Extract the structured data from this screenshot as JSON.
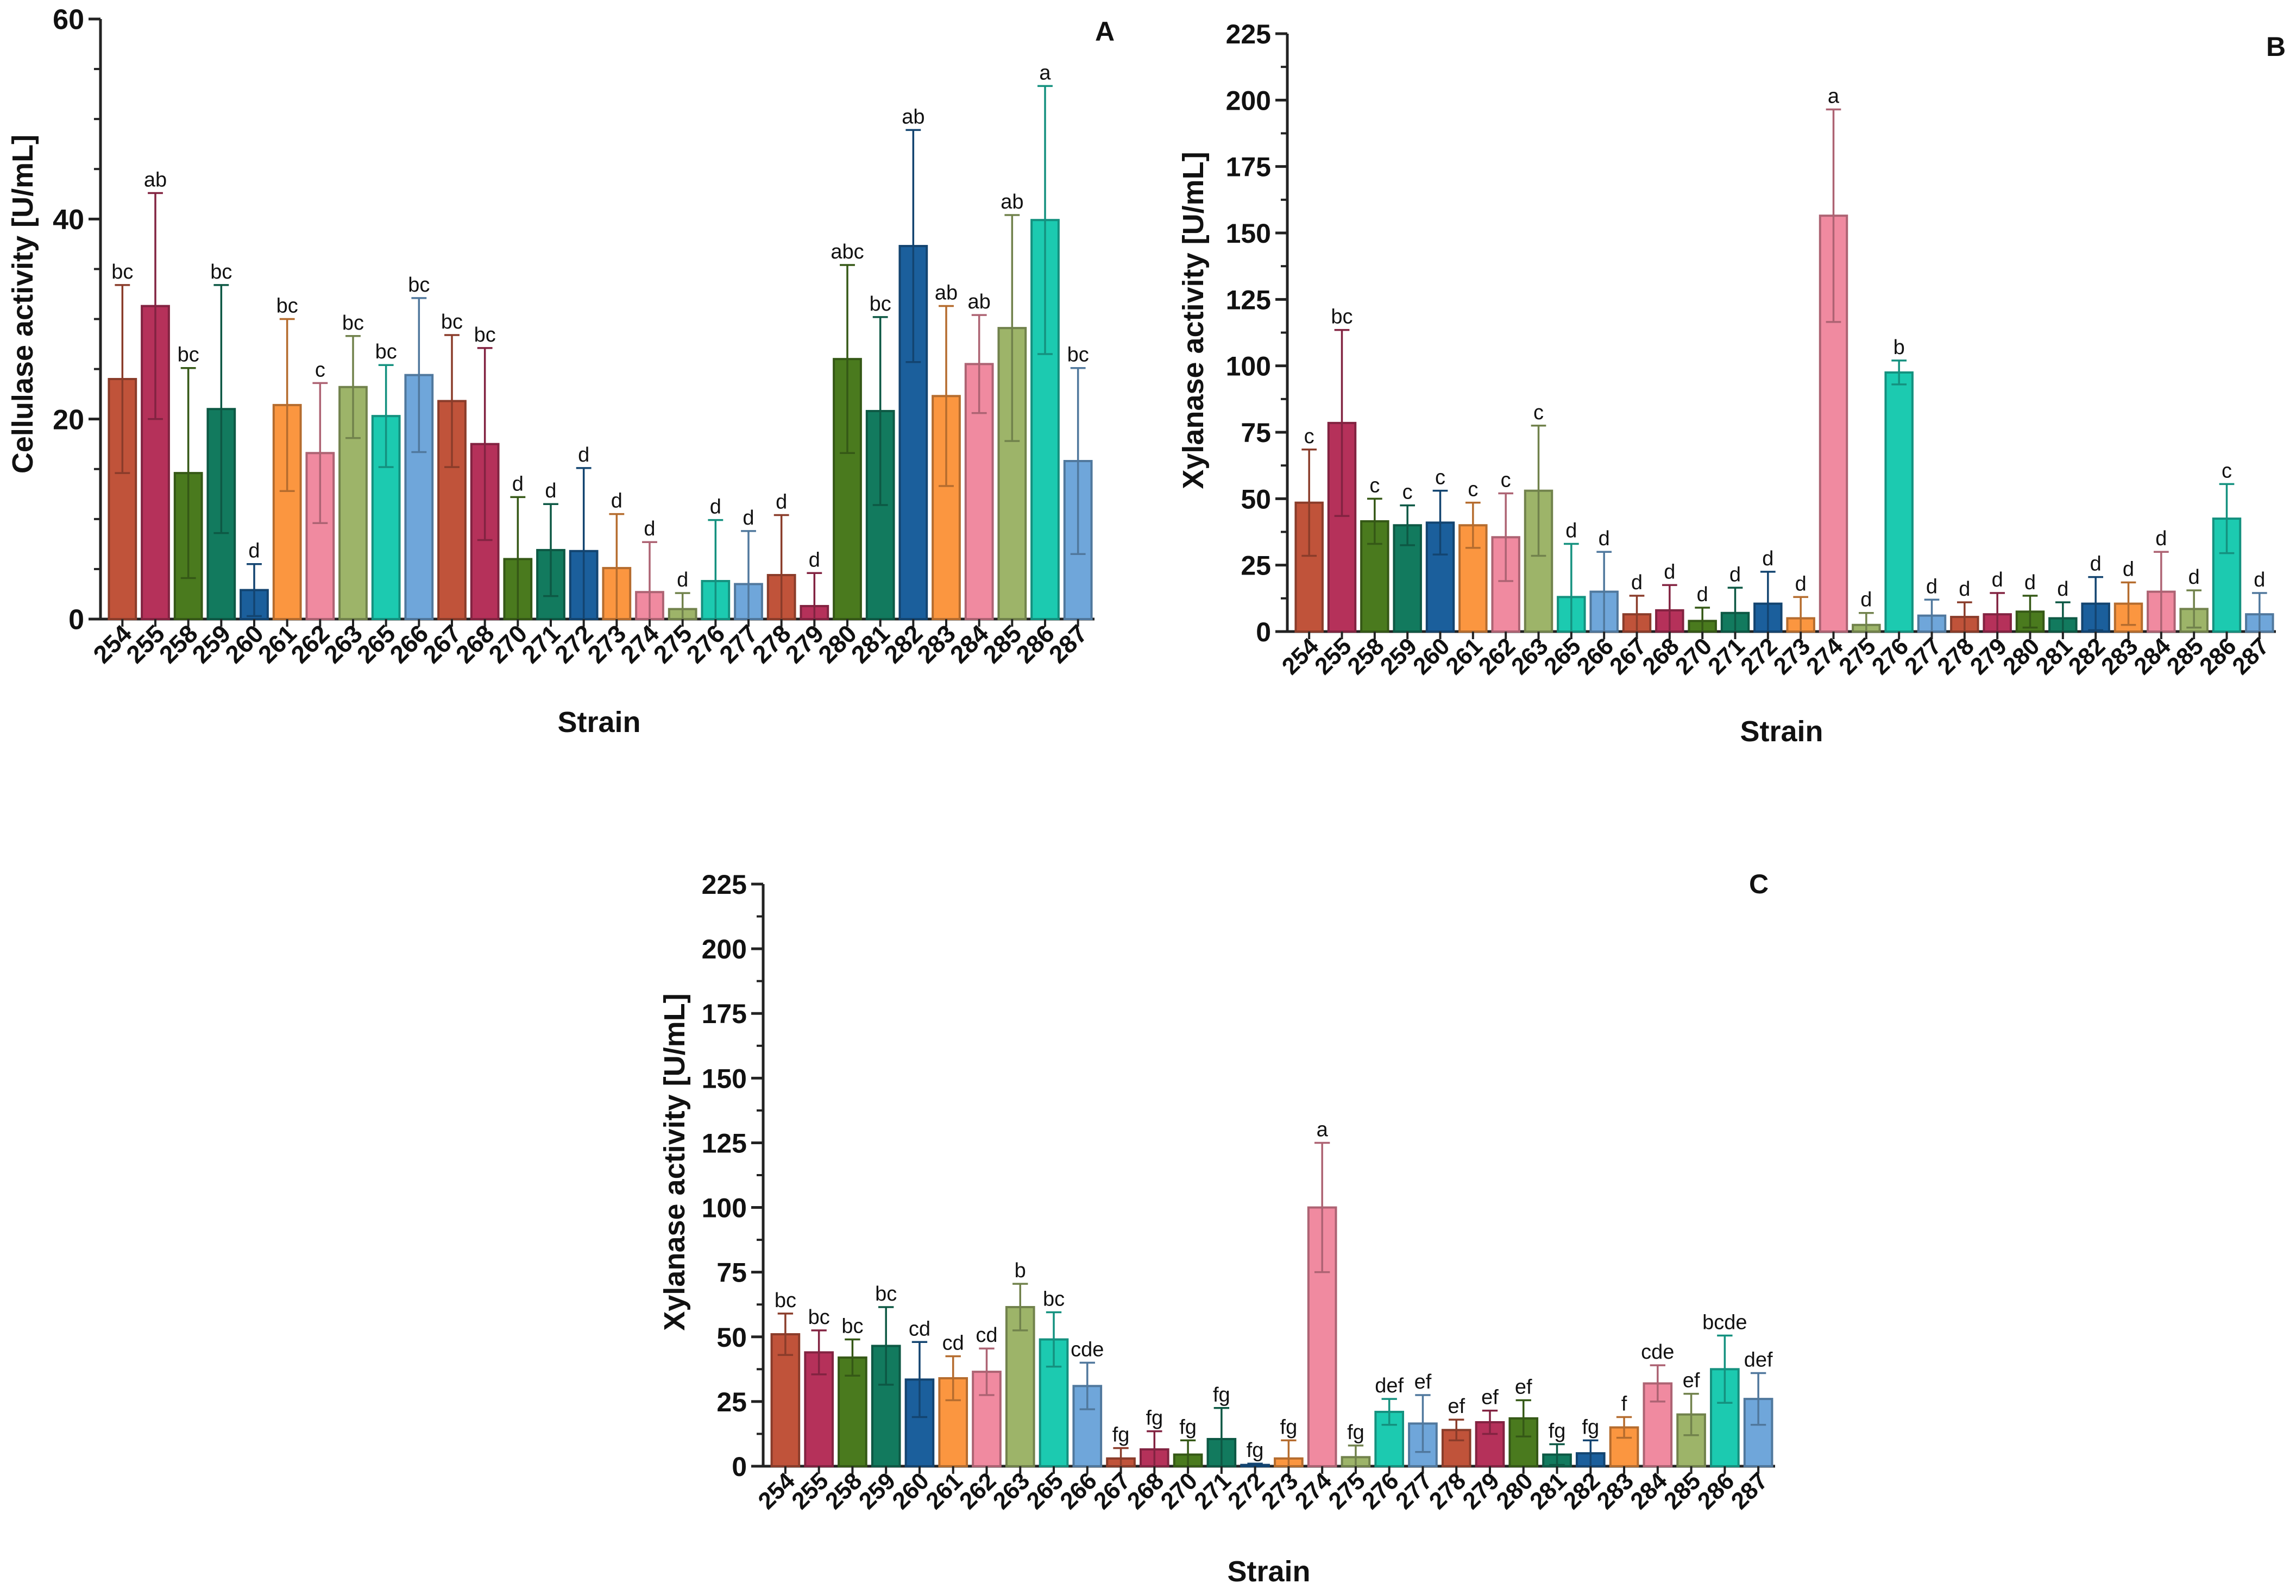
{
  "figure": {
    "x_tick_labels": [
      "254",
      "255",
      "258",
      "259",
      "260",
      "261",
      "262",
      "263",
      "265",
      "266",
      "267",
      "268",
      "270",
      "271",
      "272",
      "273",
      "274",
      "275",
      "276",
      "277",
      "278",
      "279",
      "280",
      "281",
      "282",
      "283",
      "284",
      "285",
      "286",
      "287"
    ],
    "bar_colors": [
      "#c0533a",
      "#b5315a",
      "#4a7a1e",
      "#127a5e",
      "#1b5f9c",
      "#fb9640",
      "#f08aa0",
      "#9db469",
      "#1ccab0",
      "#6fa6da",
      "#c0533a",
      "#b5315a",
      "#4a7a1e",
      "#127a5e",
      "#1b5f9c",
      "#fb9640",
      "#f08aa0",
      "#9db469",
      "#1ccab0",
      "#6fa6da",
      "#c0533a",
      "#b5315a",
      "#4a7a1e",
      "#127a5e",
      "#1b5f9c",
      "#fb9640",
      "#f08aa0",
      "#9db469",
      "#1ccab0",
      "#6fa6da"
    ]
  },
  "chart_data": [
    {
      "type": "bar",
      "panel_label": "A",
      "xlabel": "Strain",
      "ylabel": "Cellulase activity [U/mL]",
      "ylim": [
        0,
        60
      ],
      "yticks": [
        0,
        20,
        40,
        60
      ],
      "categories": [
        "254",
        "255",
        "258",
        "259",
        "260",
        "261",
        "262",
        "263",
        "265",
        "266",
        "267",
        "268",
        "270",
        "271",
        "272",
        "273",
        "274",
        "275",
        "276",
        "277",
        "278",
        "279",
        "280",
        "281",
        "282",
        "283",
        "284",
        "285",
        "286",
        "287"
      ],
      "values": [
        24,
        31.3,
        14.6,
        21,
        2.9,
        21.4,
        16.6,
        23.2,
        20.3,
        24.4,
        21.8,
        17.5,
        6,
        6.9,
        6.8,
        5.1,
        2.7,
        1,
        3.8,
        3.5,
        4.4,
        1.3,
        26,
        20.8,
        37.3,
        22.3,
        25.5,
        29.1,
        39.9,
        15.8
      ],
      "errors": [
        9.4,
        11.3,
        10.5,
        12.4,
        2.6,
        8.6,
        7,
        5.1,
        5.1,
        7.7,
        6.6,
        9.6,
        6.2,
        4.6,
        8.3,
        5.4,
        5,
        1.6,
        6.1,
        5.3,
        6,
        3.3,
        9.4,
        9.4,
        11.6,
        9,
        4.9,
        11.3,
        13.4,
        9.3
      ],
      "significance_labels": [
        "bc",
        "ab",
        "bc",
        "bc",
        "d",
        "bc",
        "c",
        "bc",
        "bc",
        "bc",
        "bc",
        "bc",
        "d",
        "d",
        "d",
        "d",
        "d",
        "d",
        "d",
        "d",
        "d",
        "d",
        "abc",
        "bc",
        "ab",
        "ab",
        "ab",
        "ab",
        "a",
        "bc"
      ]
    },
    {
      "type": "bar",
      "panel_label": "B",
      "xlabel": "Strain",
      "ylabel": "Xylanase activity [U/mL]",
      "ylim": [
        0,
        225
      ],
      "yticks": [
        0,
        25,
        50,
        75,
        100,
        125,
        150,
        175,
        200,
        225
      ],
      "categories": [
        "254",
        "255",
        "258",
        "259",
        "260",
        "261",
        "262",
        "263",
        "265",
        "266",
        "267",
        "268",
        "270",
        "271",
        "272",
        "273",
        "274",
        "275",
        "276",
        "277",
        "278",
        "279",
        "280",
        "281",
        "282",
        "283",
        "284",
        "285",
        "286",
        "287"
      ],
      "values": [
        48.5,
        78.5,
        41.5,
        40,
        41,
        40,
        35.5,
        53,
        13,
        15,
        6.5,
        8,
        4,
        7,
        10.5,
        5,
        156.5,
        2.5,
        97.5,
        6,
        5.5,
        6.5,
        7.5,
        5,
        10.5,
        10.5,
        15,
        8.5,
        42.5,
        6.5
      ],
      "errors": [
        20,
        35,
        8.5,
        7.5,
        12,
        8.5,
        16.5,
        24.5,
        20,
        15,
        7,
        9.5,
        5,
        9.5,
        12,
        8,
        40,
        4.5,
        4.5,
        6,
        5.5,
        8,
        6,
        6,
        10,
        8,
        15,
        7,
        13,
        8
      ],
      "significance_labels": [
        "c",
        "bc",
        "c",
        "c",
        "c",
        "c",
        "c",
        "c",
        "d",
        "d",
        "d",
        "d",
        "d",
        "d",
        "d",
        "d",
        "a",
        "d",
        "b",
        "d",
        "d",
        "d",
        "d",
        "d",
        "d",
        "d",
        "d",
        "d",
        "c",
        "d"
      ]
    },
    {
      "type": "bar",
      "panel_label": "C",
      "xlabel": "Strain",
      "ylabel": "Xylanase activity [U/mL]",
      "ylim": [
        0,
        225
      ],
      "yticks": [
        0,
        25,
        50,
        75,
        100,
        125,
        150,
        175,
        200,
        225
      ],
      "categories": [
        "254",
        "255",
        "258",
        "259",
        "260",
        "261",
        "262",
        "263",
        "265",
        "266",
        "267",
        "268",
        "270",
        "271",
        "272",
        "273",
        "274",
        "275",
        "276",
        "277",
        "278",
        "279",
        "280",
        "281",
        "282",
        "283",
        "284",
        "285",
        "286",
        "287"
      ],
      "values": [
        51,
        44,
        42,
        46.5,
        33.5,
        34,
        36.5,
        61.5,
        49,
        31,
        3,
        6.5,
        4.5,
        10.5,
        0.5,
        3,
        100,
        3.5,
        21,
        16.5,
        14,
        17,
        18.5,
        4.5,
        5,
        15,
        32,
        20,
        37.5,
        26
      ],
      "errors": [
        8,
        8.5,
        7,
        15,
        14.5,
        8.5,
        9,
        9,
        10.5,
        9,
        4,
        7,
        5.5,
        12,
        0.5,
        7,
        25,
        4.5,
        5,
        11,
        4,
        4.5,
        7,
        4,
        5,
        4,
        7,
        8,
        13,
        10
      ],
      "significance_labels": [
        "bc",
        "bc",
        "bc",
        "bc",
        "cd",
        "cd",
        "cd",
        "b",
        "bc",
        "cde",
        "fg",
        "fg",
        "fg",
        "fg",
        "fg",
        "fg",
        "a",
        "fg",
        "def",
        "ef",
        "ef",
        "ef",
        "ef",
        "fg",
        "fg",
        "f",
        "cde",
        "ef",
        "bcde",
        "def"
      ]
    }
  ]
}
